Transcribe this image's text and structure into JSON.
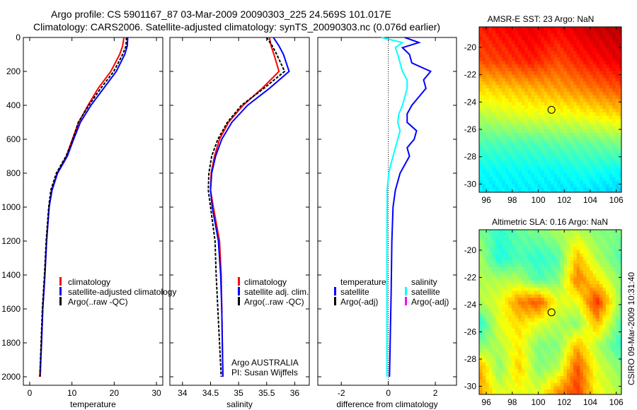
{
  "title_line1": "Argo profile: CS 5901167_87 03-Mar-2009 20090303_225 24.569S 101.017E",
  "title_line2": "Climatology: CARS2006. Satellite-adjusted climatology: synTS_20090303.nc (0.076d earlier)",
  "footer_stamp": "CSIRO 09-Mar-2009 10:31:40",
  "colors": {
    "climatology": "#ff0000",
    "satellite": "#0000ff",
    "argo": "#000000",
    "sal_satellite": "#00ffff",
    "sal_argo": "#ff00ff"
  },
  "chart_data": [
    {
      "type": "line",
      "name": "temperature-profile",
      "xlabel": "temperature",
      "ylabel": "",
      "xlim": [
        -1.5,
        31.5
      ],
      "ylim": [
        0,
        2050
      ],
      "xticks": [
        "0",
        "10",
        "20",
        "30"
      ],
      "xtick_values": [
        0,
        10,
        20,
        30
      ],
      "yticks": [
        "0",
        "200",
        "400",
        "600",
        "800",
        "1000",
        "1200",
        "1400",
        "1600",
        "1800",
        "2000"
      ],
      "ytick_values": [
        0,
        200,
        400,
        600,
        800,
        1000,
        1200,
        1400,
        1600,
        1800,
        2000
      ],
      "depth": [
        0,
        50,
        100,
        200,
        300,
        400,
        500,
        600,
        700,
        800,
        900,
        1000,
        1200,
        1400,
        1600,
        1800,
        2000
      ],
      "series": [
        {
          "name": "climatology",
          "color": "#ff0000",
          "values": [
            22.3,
            22.0,
            21.3,
            19.2,
            16.2,
            13.8,
            11.6,
            10.1,
            8.7,
            6.5,
            5.2,
            4.6,
            4.0,
            3.6,
            3.1,
            2.8,
            2.5
          ]
        },
        {
          "name": "satellite-adjusted climatology",
          "color": "#0000ff",
          "values": [
            23.2,
            23.1,
            22.5,
            20.5,
            17.5,
            14.5,
            12.0,
            10.4,
            8.9,
            6.6,
            5.3,
            4.6,
            4.0,
            3.6,
            3.1,
            2.8,
            2.4
          ]
        },
        {
          "name": "Argo(..raw -QC)",
          "color": "#000000",
          "values": [
            22.9,
            22.8,
            22.0,
            19.9,
            16.8,
            14.0,
            11.5,
            10.2,
            8.6,
            6.3,
            5.0,
            4.5,
            3.9,
            3.5,
            3.0,
            2.7,
            2.4
          ]
        }
      ],
      "legend": [
        "climatology",
        "satellite-adjusted climatology",
        "Argo(..raw -QC)"
      ]
    },
    {
      "type": "line",
      "name": "salinity-profile",
      "xlabel": "salinity",
      "xlim": [
        33.775,
        36.26
      ],
      "ylim": [
        0,
        2050
      ],
      "xticks": [
        "34",
        "34.5",
        "35",
        "35.5",
        "36"
      ],
      "xtick_values": [
        34,
        34.5,
        35,
        35.5,
        36
      ],
      "depth": [
        0,
        50,
        100,
        200,
        300,
        400,
        500,
        600,
        700,
        800,
        900,
        1000,
        1200,
        1400,
        1600,
        1800,
        2000
      ],
      "series": [
        {
          "name": "climatology",
          "color": "#ff0000",
          "values": [
            35.55,
            35.58,
            35.63,
            35.72,
            35.42,
            35.08,
            34.82,
            34.66,
            34.57,
            34.51,
            34.5,
            34.55,
            34.66,
            34.69,
            34.7,
            34.71,
            34.72
          ]
        },
        {
          "name": "satellite adj. clim.",
          "color": "#0000ff",
          "values": [
            35.62,
            35.72,
            35.8,
            35.9,
            35.55,
            35.16,
            34.88,
            34.7,
            34.59,
            34.52,
            34.5,
            34.53,
            34.64,
            34.68,
            34.7,
            34.71,
            34.72
          ]
        },
        {
          "name": "Argo(..raw -QC)",
          "color": "#000000",
          "values": [
            35.5,
            35.6,
            35.68,
            35.82,
            35.45,
            35.05,
            34.8,
            34.63,
            34.52,
            34.47,
            34.46,
            34.5,
            34.58,
            34.6,
            34.63,
            34.66,
            34.69
          ]
        }
      ],
      "legend": [
        "climatology",
        "satellite adj. clim.",
        "Argo(..raw -QC)"
      ],
      "annotation": [
        "Argo AUSTRALIA",
        "PI: Susan Wijffels"
      ]
    },
    {
      "type": "line",
      "name": "difference-profile",
      "xlabel": "difference from climatology",
      "xlim": [
        -3,
        2.9
      ],
      "ylim": [
        0,
        2050
      ],
      "xticks": [
        "-2",
        "0",
        "2"
      ],
      "xtick_values": [
        -2,
        0,
        2
      ],
      "depth": [
        0,
        30,
        60,
        100,
        150,
        200,
        250,
        300,
        350,
        400,
        450,
        500,
        550,
        600,
        650,
        700,
        750,
        800,
        900,
        1000,
        1200,
        1500,
        2000
      ],
      "series": [
        {
          "name": "temperature satellite",
          "color": "#0000ff",
          "values": [
            0.7,
            1.3,
            0.6,
            0.9,
            1.0,
            1.8,
            1.5,
            1.6,
            1.3,
            1.0,
            0.8,
            0.8,
            1.2,
            1.1,
            0.8,
            0.9,
            0.7,
            0.5,
            0.3,
            0.2,
            0.15,
            0.12,
            0.05
          ]
        },
        {
          "name": "salinity satellite",
          "color": "#00ffff",
          "values": [
            -0.3,
            0.6,
            0.3,
            0.4,
            0.5,
            0.6,
            0.8,
            0.8,
            0.7,
            0.6,
            0.45,
            0.4,
            0.5,
            0.4,
            0.3,
            0.2,
            0.1,
            0.02,
            -0.05,
            -0.05,
            -0.06,
            -0.06,
            -0.06
          ]
        }
      ],
      "legend_temperature": {
        "heading": "temperature",
        "items": [
          "satellite",
          "Argo(-adj)"
        ]
      },
      "legend_salinity": {
        "heading": "salinity",
        "items": [
          "satellite",
          "Argo(-adj)"
        ]
      }
    },
    {
      "type": "heatmap",
      "name": "sst-map",
      "title": "AMSR-E SST: 23 Argo: NaN",
      "xlim": [
        95.45,
        106.4
      ],
      "ylim": [
        -30.6,
        -18.5
      ],
      "xticks": [
        "96",
        "98",
        "100",
        "102",
        "104",
        "106"
      ],
      "xtick_values": [
        96,
        98,
        100,
        102,
        104,
        106
      ],
      "yticks": [
        "-20",
        "-22",
        "-24",
        "-26",
        "-28",
        "-30"
      ],
      "ytick_values": [
        -20,
        -22,
        -24,
        -26,
        -28,
        -30
      ],
      "grid_lon": [
        95.5,
        97.5,
        99.5,
        101.5,
        103.5,
        106.4
      ],
      "grid_lat": [
        -18.5,
        -21,
        -23,
        -25,
        -27,
        -29,
        -30.6
      ],
      "grid_values": [
        [
          0.85,
          0.88,
          0.9,
          0.88,
          0.92,
          0.95
        ],
        [
          0.8,
          0.82,
          0.85,
          0.8,
          0.85,
          0.9
        ],
        [
          0.66,
          0.68,
          0.7,
          0.72,
          0.75,
          0.8
        ],
        [
          0.55,
          0.58,
          0.6,
          0.6,
          0.62,
          0.66
        ],
        [
          0.45,
          0.45,
          0.45,
          0.47,
          0.47,
          0.5
        ],
        [
          0.38,
          0.38,
          0.38,
          0.38,
          0.4,
          0.38
        ],
        [
          0.36,
          0.36,
          0.36,
          0.35,
          0.35,
          0.33
        ]
      ],
      "marker": {
        "lon": 101.017,
        "lat": -24.569
      }
    },
    {
      "type": "heatmap",
      "name": "sla-map",
      "title": "Altimetric SLA: 0.16 Argo: NaN",
      "xlim": [
        95.45,
        106.4
      ],
      "ylim": [
        -30.6,
        -18.5
      ],
      "xticks": [
        "96",
        "98",
        "100",
        "102",
        "104",
        "106"
      ],
      "xtick_values": [
        96,
        98,
        100,
        102,
        104,
        106
      ],
      "yticks": [
        "-20",
        "-22",
        "-24",
        "-26",
        "-28",
        "-30"
      ],
      "ytick_values": [
        -20,
        -22,
        -24,
        -26,
        -28,
        -30
      ],
      "grid_lon": [
        95.45,
        97,
        98.5,
        100,
        101.5,
        103,
        104.5,
        106.4
      ],
      "grid_lat": [
        -18.5,
        -20.6,
        -22.2,
        -23.8,
        -25.4,
        -27,
        -28.6,
        -30.6
      ],
      "grid_values": [
        [
          0.5,
          0.42,
          0.47,
          0.5,
          0.55,
          0.55,
          0.5,
          0.5
        ],
        [
          0.55,
          0.4,
          0.45,
          0.42,
          0.45,
          0.7,
          0.55,
          0.45
        ],
        [
          0.55,
          0.55,
          0.55,
          0.45,
          0.5,
          0.76,
          0.65,
          0.5
        ],
        [
          0.55,
          0.6,
          0.74,
          0.8,
          0.6,
          0.6,
          0.84,
          0.5
        ],
        [
          0.4,
          0.6,
          0.66,
          0.6,
          0.55,
          0.5,
          0.7,
          0.45
        ],
        [
          0.5,
          0.55,
          0.64,
          0.5,
          0.5,
          0.7,
          0.55,
          0.42
        ],
        [
          0.72,
          0.5,
          0.68,
          0.5,
          0.55,
          0.8,
          0.6,
          0.5
        ],
        [
          0.72,
          0.6,
          0.6,
          0.6,
          0.75,
          0.82,
          0.62,
          0.55
        ]
      ],
      "marker": {
        "lon": 101.017,
        "lat": -24.569
      }
    }
  ]
}
